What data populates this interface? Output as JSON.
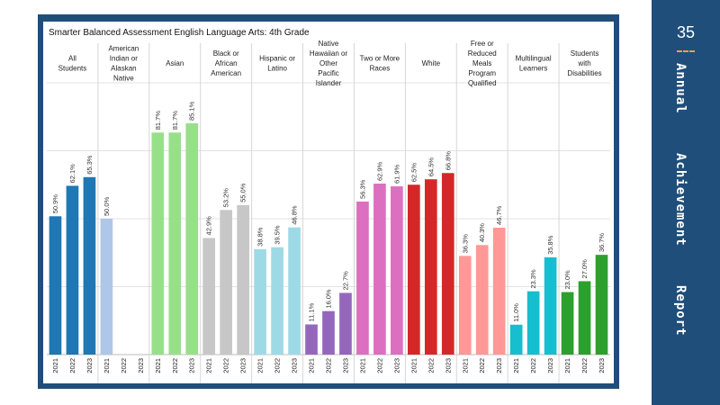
{
  "page": {
    "number": "35",
    "side_title": [
      "Annual",
      "Achievement",
      "Report"
    ],
    "accent_color": "#f0a04b",
    "brand_color": "#1f4e7a"
  },
  "chart_data": {
    "type": "bar",
    "title": "Smarter Balanced Assessment English Language Arts: 4th Grade",
    "xlabel": "",
    "ylabel": "",
    "ylim": [
      0,
      100
    ],
    "grid": true,
    "years": [
      "2021",
      "2022",
      "2023"
    ],
    "groups": [
      {
        "name": "All Students",
        "color": "#1f77b4",
        "values": [
          50.9,
          62.1,
          65.3
        ],
        "labels": [
          "50.9%",
          "62.1%",
          "65.3%"
        ]
      },
      {
        "name": "American Indian or Alaskan Native",
        "color": "#aec7e8",
        "values": [
          50.0,
          null,
          null
        ],
        "labels": [
          "50.0%",
          "",
          ""
        ]
      },
      {
        "name": "Asian",
        "color": "#98df8a",
        "values": [
          81.7,
          81.7,
          85.1
        ],
        "labels": [
          "81.7%",
          "81.7%",
          "85.1%"
        ]
      },
      {
        "name": "Black or African American",
        "color": "#c7c7c7",
        "values": [
          42.9,
          53.2,
          55.0
        ],
        "labels": [
          "42.9%",
          "53.2%",
          "55.0%"
        ]
      },
      {
        "name": "Hispanic or Latino",
        "color": "#9edae5",
        "values": [
          38.8,
          39.5,
          46.8
        ],
        "labels": [
          "38.8%",
          "39.5%",
          "46.8%"
        ]
      },
      {
        "name": "Native Hawaiian or Other Pacific Islander",
        "color": "#9467bd",
        "values": [
          11.1,
          16.0,
          22.7
        ],
        "labels": [
          "11.1%",
          "16.0%",
          "22.7%"
        ]
      },
      {
        "name": "Two or More Races",
        "color": "#dc6fc0",
        "values": [
          56.3,
          62.9,
          61.9
        ],
        "labels": [
          "56.3%",
          "62.9%",
          "61.9%"
        ]
      },
      {
        "name": "White",
        "color": "#d62728",
        "values": [
          62.5,
          64.5,
          66.8
        ],
        "labels": [
          "62.5%",
          "64.5%",
          "66.8%"
        ]
      },
      {
        "name": "Free or Reduced Meals Program Qualified",
        "color": "#ff9896",
        "values": [
          36.3,
          40.3,
          46.7
        ],
        "labels": [
          "36.3%",
          "40.3%",
          "46.7%"
        ]
      },
      {
        "name": "Multilingual Learners",
        "color": "#17becf",
        "values": [
          11.0,
          23.3,
          35.8
        ],
        "labels": [
          "11.0%",
          "23.3%",
          "35.8%"
        ]
      },
      {
        "name": "Students with Disabilities",
        "color": "#2ca02c",
        "values": [
          23.0,
          27.0,
          36.7
        ],
        "labels": [
          "23.0%",
          "27.0%",
          "36.7%"
        ]
      }
    ]
  }
}
